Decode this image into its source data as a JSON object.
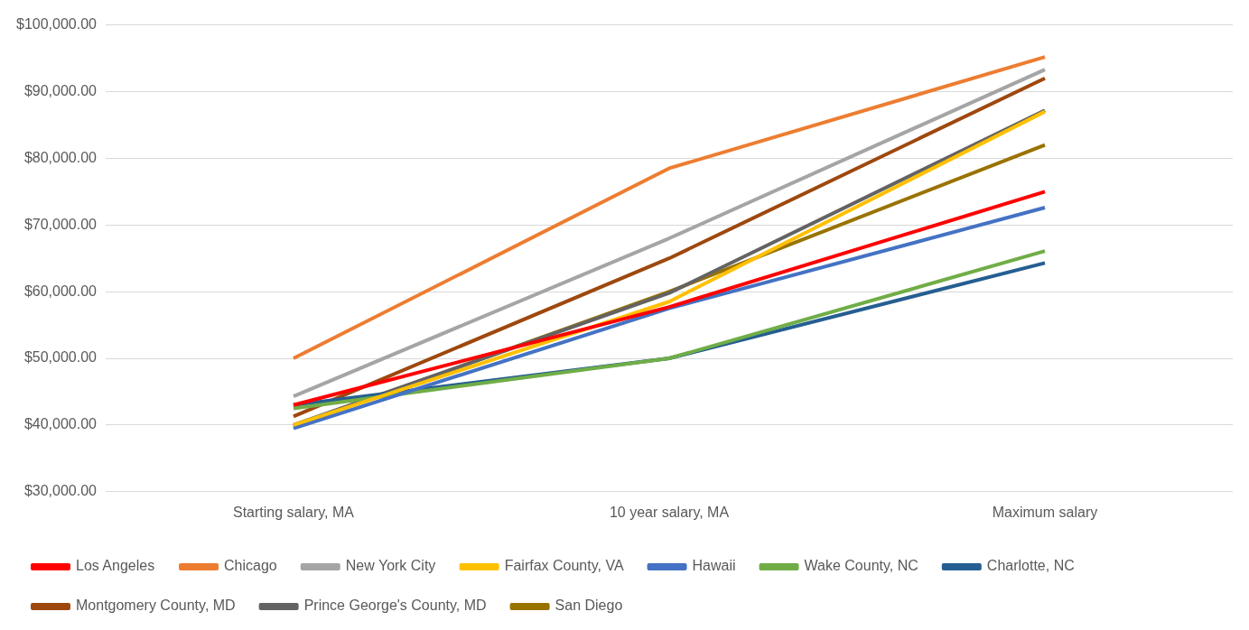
{
  "chart_data": {
    "type": "line",
    "categories": [
      "Starting salary, MA",
      "10 year salary, MA",
      "Maximum salary"
    ],
    "series": [
      {
        "name": "Los Angeles",
        "color": "#ff0000",
        "values": [
          43000,
          57700,
          75000
        ]
      },
      {
        "name": "Chicago",
        "color": "#ed7d31",
        "values": [
          50000,
          78500,
          95200
        ]
      },
      {
        "name": "New York City",
        "color": "#a5a5a5",
        "values": [
          44300,
          68000,
          93300
        ]
      },
      {
        "name": "Fairfax County, VA",
        "color": "#ffc000",
        "values": [
          40000,
          58500,
          87000
        ]
      },
      {
        "name": "Hawaii",
        "color": "#4472c4",
        "values": [
          39500,
          57500,
          72600
        ]
      },
      {
        "name": "Wake County, NC",
        "color": "#70ad47",
        "values": [
          42500,
          50000,
          66100
        ]
      },
      {
        "name": "Charlotte, NC",
        "color": "#255e91",
        "values": [
          43000,
          50000,
          64300
        ]
      },
      {
        "name": "Montgomery County, MD",
        "color": "#9e480e",
        "values": [
          41300,
          65000,
          92000
        ]
      },
      {
        "name": "Prince George's County, MD",
        "color": "#636363",
        "values": [
          40000,
          59800,
          87200
        ]
      },
      {
        "name": "San Diego",
        "color": "#997300",
        "values": [
          39800,
          60000,
          82000
        ]
      }
    ],
    "ylim": [
      30000,
      100000
    ],
    "yticks": [
      {
        "value": 30000,
        "label": "$30,000.00"
      },
      {
        "value": 40000,
        "label": "$40,000.00"
      },
      {
        "value": 50000,
        "label": "$50,000.00"
      },
      {
        "value": 60000,
        "label": "$60,000.00"
      },
      {
        "value": 70000,
        "label": "$70,000.00"
      },
      {
        "value": 80000,
        "label": "$80,000.00"
      },
      {
        "value": 90000,
        "label": "$90,000.00"
      },
      {
        "value": 100000,
        "label": "$100,000.00"
      }
    ],
    "grid": "y",
    "legend": "bottom",
    "marker": "none",
    "line_style": "solid"
  }
}
